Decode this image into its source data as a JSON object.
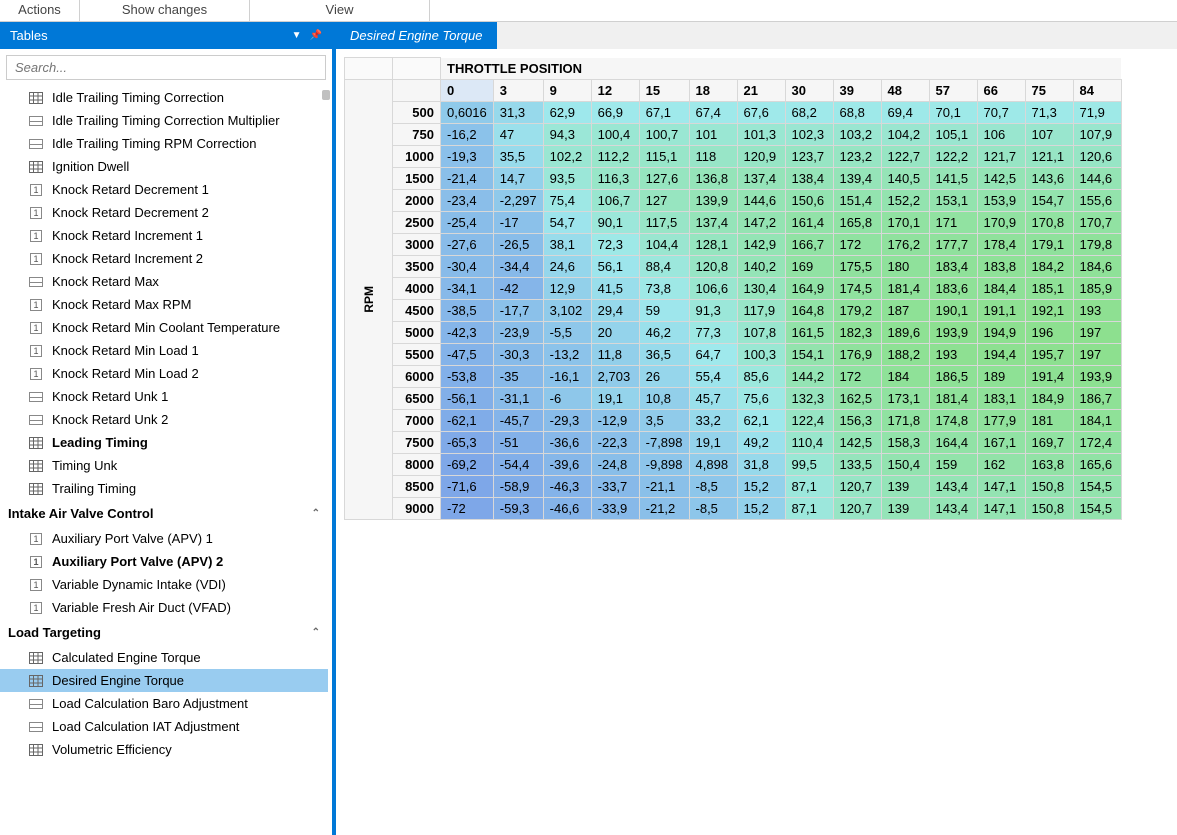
{
  "menubar": {
    "items": [
      "Actions",
      "Show changes",
      "View"
    ]
  },
  "sidebar": {
    "title": "Tables",
    "search_placeholder": "Search...",
    "flat_items": [
      {
        "icon": "table",
        "label": "Idle Trailing Timing Correction"
      },
      {
        "icon": "2d",
        "label": "Idle Trailing Timing Correction Multiplier"
      },
      {
        "icon": "2d",
        "label": "Idle Trailing Timing RPM Correction"
      },
      {
        "icon": "table",
        "label": "Ignition Dwell"
      },
      {
        "icon": "1d",
        "label": "Knock Retard Decrement 1"
      },
      {
        "icon": "1d",
        "label": "Knock Retard Decrement 2"
      },
      {
        "icon": "1d",
        "label": "Knock Retard Increment 1"
      },
      {
        "icon": "1d",
        "label": "Knock Retard Increment 2"
      },
      {
        "icon": "2d",
        "label": "Knock Retard Max"
      },
      {
        "icon": "1d",
        "label": "Knock Retard Max RPM"
      },
      {
        "icon": "1d",
        "label": "Knock Retard Min Coolant Temperature"
      },
      {
        "icon": "1d",
        "label": "Knock Retard Min Load 1"
      },
      {
        "icon": "1d",
        "label": "Knock Retard Min Load 2"
      },
      {
        "icon": "2d",
        "label": "Knock Retard Unk 1"
      },
      {
        "icon": "2d",
        "label": "Knock Retard Unk 2"
      },
      {
        "icon": "table",
        "label": "Leading Timing",
        "bold": true
      },
      {
        "icon": "table",
        "label": "Timing Unk"
      },
      {
        "icon": "table",
        "label": "Trailing Timing"
      }
    ],
    "groups": [
      {
        "title": "Intake Air Valve Control",
        "items": [
          {
            "icon": "1d",
            "label": "Auxiliary Port Valve (APV) 1"
          },
          {
            "icon": "1d",
            "label": "Auxiliary Port Valve (APV) 2",
            "bold": true
          },
          {
            "icon": "1d",
            "label": "Variable Dynamic Intake (VDI)"
          },
          {
            "icon": "1d",
            "label": "Variable Fresh Air Duct (VFAD)"
          }
        ]
      },
      {
        "title": "Load Targeting",
        "items": [
          {
            "icon": "table",
            "label": "Calculated Engine Torque"
          },
          {
            "icon": "table",
            "label": "Desired Engine Torque",
            "selected": true
          },
          {
            "icon": "2d",
            "label": "Load Calculation Baro Adjustment"
          },
          {
            "icon": "2d",
            "label": "Load Calculation IAT Adjustment"
          },
          {
            "icon": "table",
            "label": "Volumetric Efficiency"
          }
        ]
      }
    ]
  },
  "tab": {
    "label": "Desired Engine Torque"
  },
  "table": {
    "x_axis_title": "THROTTLE POSITION",
    "y_axis_title": "RPM",
    "x_headers": [
      "0",
      "3",
      "9",
      "12",
      "15",
      "18",
      "21",
      "30",
      "39",
      "48",
      "57",
      "66",
      "75",
      "84"
    ],
    "y_headers": [
      "500",
      "750",
      "1000",
      "1500",
      "2000",
      "2500",
      "3000",
      "3500",
      "4000",
      "4500",
      "5000",
      "5500",
      "6000",
      "6500",
      "7000",
      "7500",
      "8000",
      "8500",
      "9000"
    ],
    "cells": [
      [
        "0,6016",
        "31,3",
        "62,9",
        "66,9",
        "67,1",
        "67,4",
        "67,6",
        "68,2",
        "68,8",
        "69,4",
        "70,1",
        "70,7",
        "71,3",
        "71,9"
      ],
      [
        "-16,2",
        "47",
        "94,3",
        "100,4",
        "100,7",
        "101",
        "101,3",
        "102,3",
        "103,2",
        "104,2",
        "105,1",
        "106",
        "107",
        "107,9"
      ],
      [
        "-19,3",
        "35,5",
        "102,2",
        "112,2",
        "115,1",
        "118",
        "120,9",
        "123,7",
        "123,2",
        "122,7",
        "122,2",
        "121,7",
        "121,1",
        "120,6"
      ],
      [
        "-21,4",
        "14,7",
        "93,5",
        "116,3",
        "127,6",
        "136,8",
        "137,4",
        "138,4",
        "139,4",
        "140,5",
        "141,5",
        "142,5",
        "143,6",
        "144,6"
      ],
      [
        "-23,4",
        "-2,297",
        "75,4",
        "106,7",
        "127",
        "139,9",
        "144,6",
        "150,6",
        "151,4",
        "152,2",
        "153,1",
        "153,9",
        "154,7",
        "155,6"
      ],
      [
        "-25,4",
        "-17",
        "54,7",
        "90,1",
        "117,5",
        "137,4",
        "147,2",
        "161,4",
        "165,8",
        "170,1",
        "171",
        "170,9",
        "170,8",
        "170,7"
      ],
      [
        "-27,6",
        "-26,5",
        "38,1",
        "72,3",
        "104,4",
        "128,1",
        "142,9",
        "166,7",
        "172",
        "176,2",
        "177,7",
        "178,4",
        "179,1",
        "179,8"
      ],
      [
        "-30,4",
        "-34,4",
        "24,6",
        "56,1",
        "88,4",
        "120,8",
        "140,2",
        "169",
        "175,5",
        "180",
        "183,4",
        "183,8",
        "184,2",
        "184,6"
      ],
      [
        "-34,1",
        "-42",
        "12,9",
        "41,5",
        "73,8",
        "106,6",
        "130,4",
        "164,9",
        "174,5",
        "181,4",
        "183,6",
        "184,4",
        "185,1",
        "185,9"
      ],
      [
        "-38,5",
        "-17,7",
        "3,102",
        "29,4",
        "59",
        "91,3",
        "117,9",
        "164,8",
        "179,2",
        "187",
        "190,1",
        "191,1",
        "192,1",
        "193"
      ],
      [
        "-42,3",
        "-23,9",
        "-5,5",
        "20",
        "46,2",
        "77,3",
        "107,8",
        "161,5",
        "182,3",
        "189,6",
        "193,9",
        "194,9",
        "196",
        "197"
      ],
      [
        "-47,5",
        "-30,3",
        "-13,2",
        "11,8",
        "36,5",
        "64,7",
        "100,3",
        "154,1",
        "176,9",
        "188,2",
        "193",
        "194,4",
        "195,7",
        "197"
      ],
      [
        "-53,8",
        "-35",
        "-16,1",
        "2,703",
        "26",
        "55,4",
        "85,6",
        "144,2",
        "172",
        "184",
        "186,5",
        "189",
        "191,4",
        "193,9"
      ],
      [
        "-56,1",
        "-31,1",
        "-6",
        "19,1",
        "10,8",
        "45,7",
        "75,6",
        "132,3",
        "162,5",
        "173,1",
        "181,4",
        "183,1",
        "184,9",
        "186,7"
      ],
      [
        "-62,1",
        "-45,7",
        "-29,3",
        "-12,9",
        "3,5",
        "33,2",
        "62,1",
        "122,4",
        "156,3",
        "171,8",
        "174,8",
        "177,9",
        "181",
        "184,1"
      ],
      [
        "-65,3",
        "-51",
        "-36,6",
        "-22,3",
        "-7,898",
        "19,1",
        "49,2",
        "110,4",
        "142,5",
        "158,3",
        "164,4",
        "167,1",
        "169,7",
        "172,4"
      ],
      [
        "-69,2",
        "-54,4",
        "-39,6",
        "-24,8",
        "-9,898",
        "4,898",
        "31,8",
        "99,5",
        "133,5",
        "150,4",
        "159",
        "162",
        "163,8",
        "165,6"
      ],
      [
        "-71,6",
        "-58,9",
        "-46,3",
        "-33,7",
        "-21,1",
        "-8,5",
        "15,2",
        "87,1",
        "120,7",
        "139",
        "143,4",
        "147,1",
        "150,8",
        "154,5"
      ],
      [
        "-72",
        "-59,3",
        "-46,6",
        "-33,9",
        "-21,2",
        "-8,5",
        "15,2",
        "87,1",
        "120,7",
        "139",
        "143,4",
        "147,1",
        "150,8",
        "154,5"
      ]
    ],
    "color_low": "#7ea7e8",
    "color_mid": "#9fe9ec",
    "color_high": "#8de08f",
    "value_min": -72,
    "value_mid": 65,
    "value_max": 197
  }
}
